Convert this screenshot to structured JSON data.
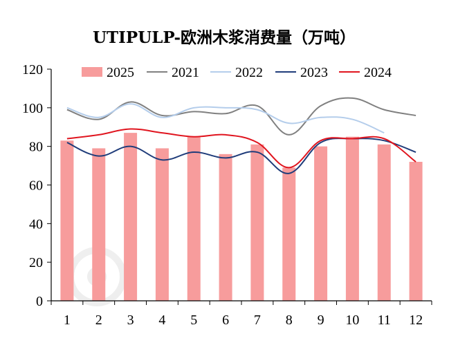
{
  "chart_data": {
    "type": "bar+line",
    "title": "UTIPULP-欧洲木浆消费量（万吨）",
    "xlabel": "",
    "ylabel": "",
    "categories": [
      "1",
      "2",
      "3",
      "4",
      "5",
      "6",
      "7",
      "8",
      "9",
      "10",
      "11",
      "12"
    ],
    "ylim": [
      0,
      120
    ],
    "yticks": [
      0,
      20,
      40,
      60,
      80,
      100,
      120
    ],
    "grid": false,
    "legend_position": "top",
    "bar_series": {
      "name": "2025",
      "color": "#f79c9c",
      "values": [
        83,
        79,
        87,
        79,
        85,
        76,
        81,
        69,
        80,
        85,
        81,
        72
      ]
    },
    "series": [
      {
        "name": "2021",
        "color": "#808080",
        "values": [
          99,
          94,
          103,
          96,
          98,
          97,
          101,
          86,
          101,
          105,
          99,
          96
        ]
      },
      {
        "name": "2022",
        "color": "#b4cdeb",
        "values": [
          100,
          95,
          102,
          95,
          100,
          100,
          99,
          92,
          95,
          94,
          87,
          null
        ]
      },
      {
        "name": "2023",
        "color": "#1f3c7a",
        "values": [
          82,
          75,
          80,
          73,
          77,
          74,
          77,
          66,
          82,
          84,
          83,
          77
        ]
      },
      {
        "name": "2024",
        "color": "#e0141e",
        "values": [
          84,
          86,
          89,
          87,
          85,
          86,
          82,
          69,
          83,
          84,
          84,
          72
        ]
      }
    ],
    "legend_order": [
      "2025",
      "2021",
      "2022",
      "2023",
      "2024"
    ]
  }
}
